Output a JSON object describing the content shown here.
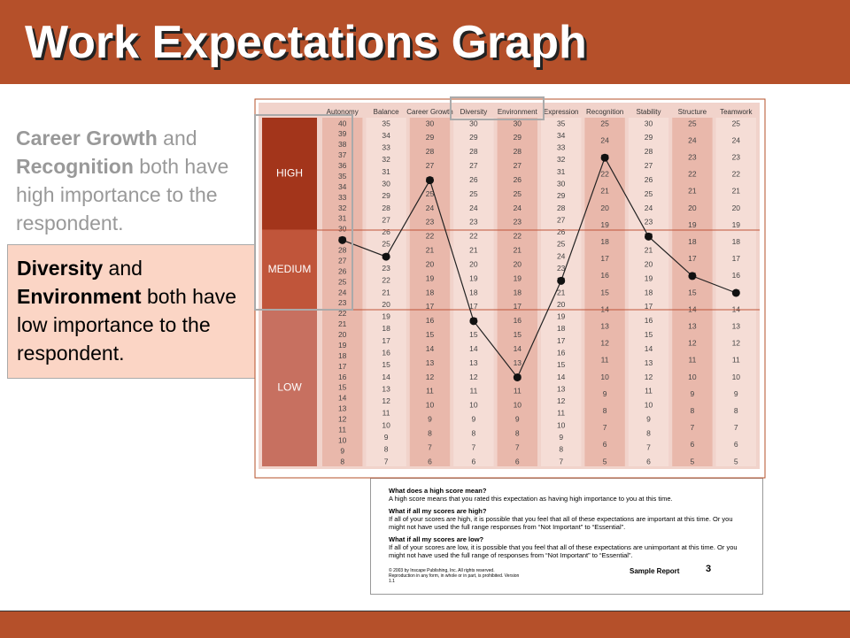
{
  "title": "Work Expectations Graph",
  "callouts": [
    {
      "parts": [
        {
          "text": "Career Growth",
          "bold": true
        },
        {
          "text": " and "
        },
        {
          "text": "Recognition",
          "bold": true
        },
        {
          "text": " both have high importance to the respondent."
        }
      ]
    },
    {
      "parts": [
        {
          "text": "Diversity",
          "bold": true
        },
        {
          "text": " and "
        },
        {
          "text": "Environment",
          "bold": true
        },
        {
          "text": " both have low importance to the respondent."
        }
      ]
    }
  ],
  "graph": {
    "levels": [
      "HIGH",
      "MEDIUM",
      "LOW"
    ],
    "columns": [
      {
        "name": "Autonomy",
        "scores": [
          40,
          39,
          38,
          37,
          36,
          35,
          34,
          33,
          32,
          31,
          30,
          29,
          28,
          27,
          26,
          25,
          24,
          23,
          22,
          21,
          20,
          19,
          18,
          17,
          16,
          15,
          14,
          13,
          12,
          11,
          10,
          9,
          8
        ],
        "score": 29
      },
      {
        "name": "Balance",
        "scores": [
          35,
          34,
          33,
          32,
          31,
          30,
          29,
          28,
          27,
          26,
          25,
          24,
          23,
          22,
          21,
          20,
          19,
          18,
          17,
          16,
          15,
          14,
          13,
          12,
          11,
          10,
          9,
          8,
          7
        ],
        "score": 24
      },
      {
        "name": "Career Growth",
        "scores": [
          30,
          29,
          28,
          27,
          26,
          25,
          24,
          23,
          22,
          21,
          20,
          19,
          18,
          17,
          16,
          15,
          14,
          13,
          12,
          11,
          10,
          9,
          8,
          7,
          6
        ],
        "score": 26
      },
      {
        "name": "Diversity",
        "scores": [
          30,
          29,
          28,
          27,
          26,
          25,
          24,
          23,
          22,
          21,
          20,
          19,
          18,
          17,
          16,
          15,
          14,
          13,
          12,
          11,
          10,
          9,
          8,
          7,
          6
        ],
        "score": 16
      },
      {
        "name": "Environment",
        "scores": [
          30,
          29,
          28,
          27,
          26,
          25,
          24,
          23,
          22,
          21,
          20,
          19,
          18,
          17,
          16,
          15,
          14,
          13,
          12,
          11,
          10,
          9,
          8,
          7,
          6
        ],
        "score": 12
      },
      {
        "name": "Expression",
        "scores": [
          35,
          34,
          33,
          32,
          31,
          30,
          29,
          28,
          27,
          26,
          25,
          24,
          23,
          22,
          21,
          20,
          19,
          18,
          17,
          16,
          15,
          14,
          13,
          12,
          11,
          10,
          9,
          8,
          7
        ],
        "score": 22
      },
      {
        "name": "Recognition",
        "scores": [
          25,
          24,
          23,
          22,
          21,
          20,
          19,
          18,
          17,
          16,
          15,
          14,
          13,
          12,
          11,
          10,
          9,
          8,
          7,
          6,
          5
        ],
        "score": 23
      },
      {
        "name": "Stability",
        "scores": [
          30,
          29,
          28,
          27,
          26,
          25,
          24,
          23,
          22,
          21,
          20,
          19,
          18,
          17,
          16,
          15,
          14,
          13,
          12,
          11,
          10,
          9,
          8,
          7,
          6
        ],
        "score": 22
      },
      {
        "name": "Structure",
        "scores": [
          25,
          24,
          23,
          22,
          21,
          20,
          19,
          18,
          17,
          16,
          15,
          14,
          13,
          12,
          11,
          10,
          9,
          8,
          7,
          6,
          5
        ],
        "score": 16
      },
      {
        "name": "Teamwork",
        "scores": [
          25,
          24,
          23,
          22,
          21,
          20,
          19,
          18,
          17,
          16,
          15,
          14,
          13,
          12,
          11,
          10,
          9,
          8,
          7,
          6,
          5
        ],
        "score": 15
      }
    ]
  },
  "report": {
    "items": [
      {
        "question": "What does a high score mean?",
        "answer": "A high score means that you rated this expectation as having high importance to you at this time."
      },
      {
        "question": "What if all my scores are high?",
        "answer": "If all of your scores are high, it is possible that you feel that all of these expectations are important at this time. Or you might not have used the full range responses from “Not Important” to “Essential”."
      },
      {
        "question": "What if all my scores are low?",
        "answer": "If all of your scores are low, it is possible that you feel that all of these expectations are unimportant at this time. Or you might not have used the full range of responses from “Not Important” to “Essential”."
      }
    ],
    "copyright": "© 2003 by Inscape Publishing, Inc. All rights reserved. Reproduction in any form, in whole or in part, is prohibited. Version 1.1",
    "footer": "Sample Report",
    "page": "3"
  }
}
